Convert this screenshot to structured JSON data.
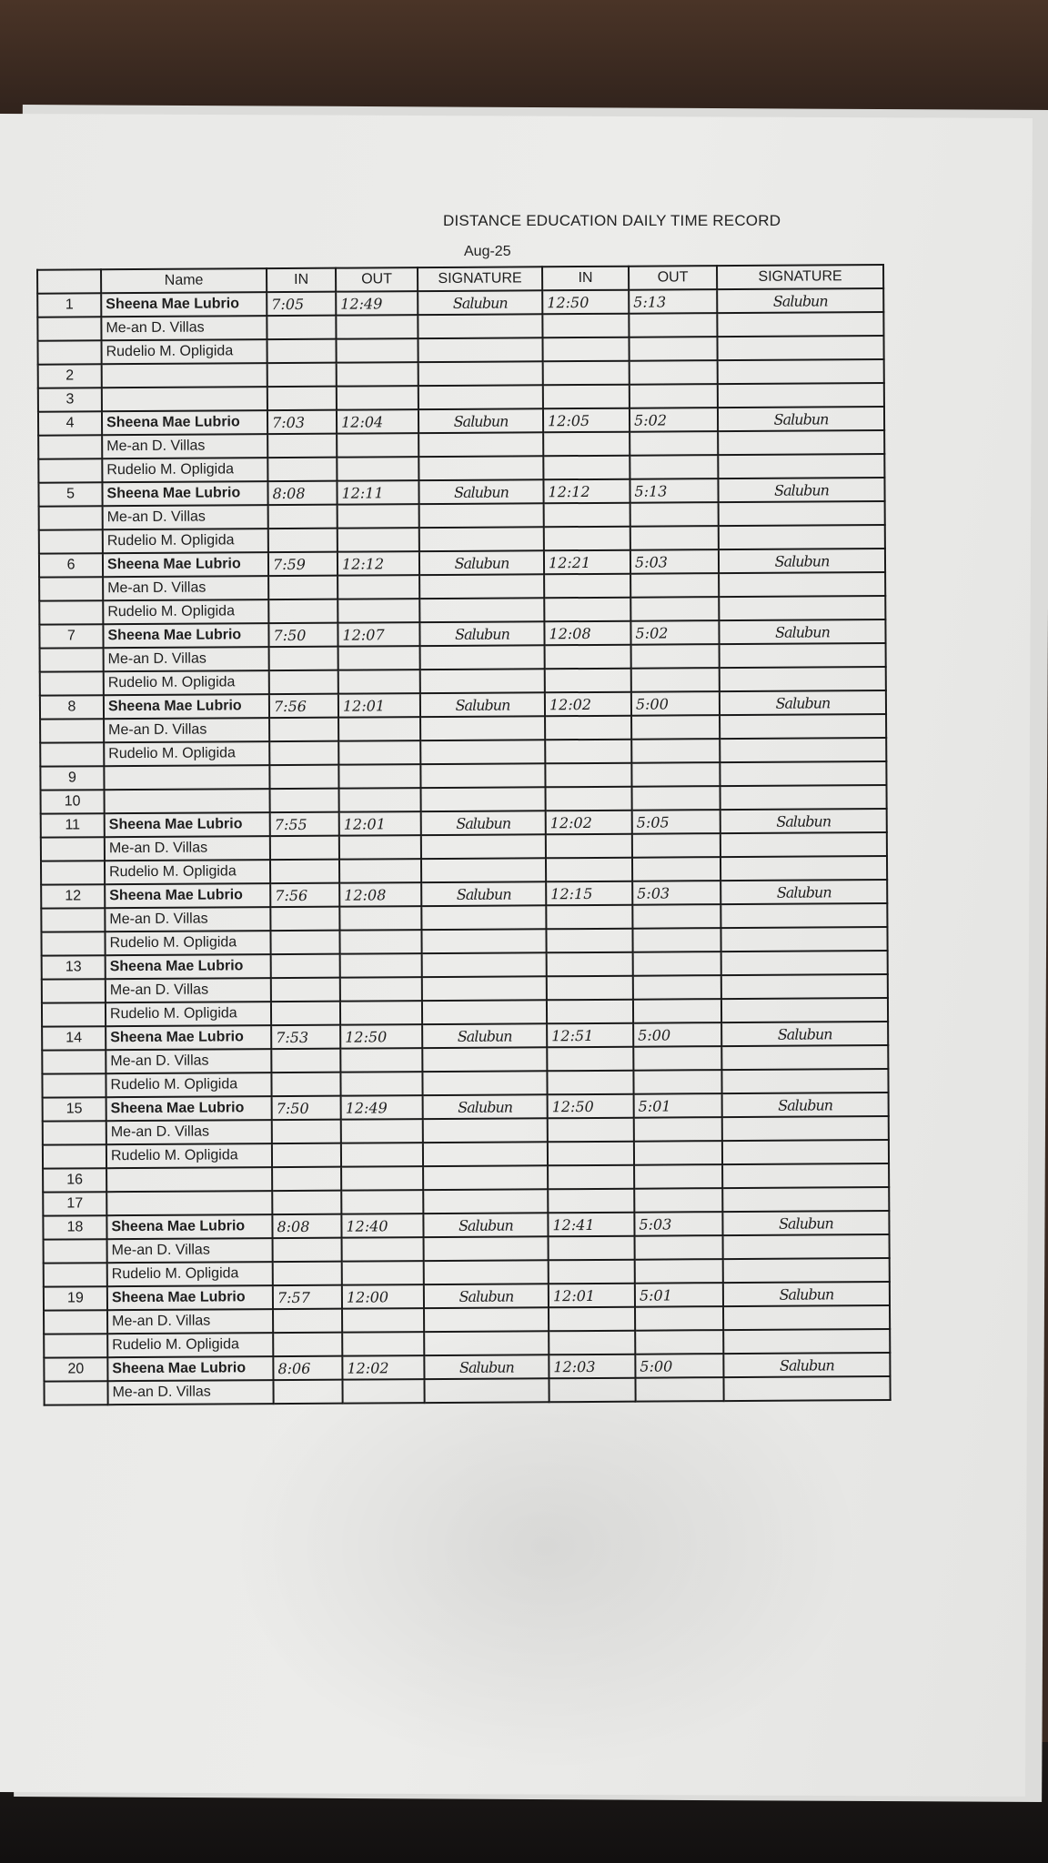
{
  "document": {
    "title": "DISTANCE EDUCATION DAILY TIME RECORD",
    "month": "Aug-25",
    "headers": [
      "",
      "Name",
      "IN",
      "OUT",
      "SIGNATURE",
      "IN",
      "OUT",
      "SIGNATURE"
    ],
    "ink_color": "#2b3a8f",
    "rows": [
      {
        "cells": [
          "1",
          "Sheena Mae Lubrio",
          "7:05",
          "12:49",
          "Salubun",
          "12:50",
          "5:13",
          "Salubun"
        ]
      },
      {
        "cells": [
          "",
          "Me-an D. Villas",
          "",
          "",
          "",
          "",
          "",
          ""
        ]
      },
      {
        "cells": [
          "",
          "Rudelio M. Opligida",
          "",
          "",
          "",
          "",
          "",
          ""
        ]
      },
      {
        "cells": [
          "2",
          "",
          "",
          "",
          "",
          "",
          "",
          ""
        ]
      },
      {
        "cells": [
          "3",
          "",
          "",
          "",
          "",
          "",
          "",
          ""
        ]
      },
      {
        "cells": [
          "4",
          "Sheena Mae Lubrio",
          "7:03",
          "12:04",
          "Salubun",
          "12:05",
          "5:02",
          "Salubun"
        ]
      },
      {
        "cells": [
          "",
          "Me-an D. Villas",
          "",
          "",
          "",
          "",
          "",
          ""
        ]
      },
      {
        "cells": [
          "",
          "Rudelio M. Opligida",
          "",
          "",
          "",
          "",
          "",
          ""
        ]
      },
      {
        "cells": [
          "5",
          "Sheena Mae Lubrio",
          "8:08",
          "12:11",
          "Salubun",
          "12:12",
          "5:13",
          "Salubun"
        ]
      },
      {
        "cells": [
          "",
          "Me-an D. Villas",
          "",
          "",
          "",
          "",
          "",
          ""
        ]
      },
      {
        "cells": [
          "",
          "Rudelio M. Opligida",
          "",
          "",
          "",
          "",
          "",
          ""
        ]
      },
      {
        "cells": [
          "6",
          "Sheena Mae Lubrio",
          "7:59",
          "12:12",
          "Salubun",
          "12:21",
          "5:03",
          "Salubun"
        ]
      },
      {
        "cells": [
          "",
          "Me-an D. Villas",
          "",
          "",
          "",
          "",
          "",
          ""
        ]
      },
      {
        "cells": [
          "",
          "Rudelio M. Opligida",
          "",
          "",
          "",
          "",
          "",
          ""
        ]
      },
      {
        "cells": [
          "7",
          "Sheena Mae Lubrio",
          "7:50",
          "12:07",
          "Salubun",
          "12:08",
          "5:02",
          "Salubun"
        ]
      },
      {
        "cells": [
          "",
          "Me-an D. Villas",
          "",
          "",
          "",
          "",
          "",
          ""
        ]
      },
      {
        "cells": [
          "",
          "Rudelio M. Opligida",
          "",
          "",
          "",
          "",
          "",
          ""
        ]
      },
      {
        "cells": [
          "8",
          "Sheena Mae Lubrio",
          "7:56",
          "12:01",
          "Salubun",
          "12:02",
          "5:00",
          "Salubun"
        ]
      },
      {
        "cells": [
          "",
          "Me-an D. Villas",
          "",
          "",
          "",
          "",
          "",
          ""
        ]
      },
      {
        "cells": [
          "",
          "Rudelio M. Opligida",
          "",
          "",
          "",
          "",
          "",
          ""
        ]
      },
      {
        "cells": [
          "9",
          "",
          "",
          "",
          "",
          "",
          "",
          ""
        ]
      },
      {
        "cells": [
          "10",
          "",
          "",
          "",
          "",
          "",
          "",
          ""
        ]
      },
      {
        "cells": [
          "11",
          "Sheena Mae Lubrio",
          "7:55",
          "12:01",
          "Salubun",
          "12:02",
          "5:05",
          "Salubun"
        ]
      },
      {
        "cells": [
          "",
          "Me-an D. Villas",
          "",
          "",
          "",
          "",
          "",
          ""
        ]
      },
      {
        "cells": [
          "",
          "Rudelio M. Opligida",
          "",
          "",
          "",
          "",
          "",
          ""
        ]
      },
      {
        "cells": [
          "12",
          "Sheena Mae Lubrio",
          "7:56",
          "12:08",
          "Salubun",
          "12:15",
          "5:03",
          "Salubun"
        ]
      },
      {
        "cells": [
          "",
          "Me-an D. Villas",
          "",
          "",
          "",
          "",
          "",
          ""
        ]
      },
      {
        "cells": [
          "",
          "Rudelio M. Opligida",
          "",
          "",
          "",
          "",
          "",
          ""
        ]
      },
      {
        "cells": [
          "13",
          "Sheena Mae Lubrio",
          "",
          "",
          "",
          "",
          "",
          ""
        ]
      },
      {
        "cells": [
          "",
          "Me-an D. Villas",
          "",
          "",
          "",
          "",
          "",
          ""
        ]
      },
      {
        "cells": [
          "",
          "Rudelio M. Opligida",
          "",
          "",
          "",
          "",
          "",
          ""
        ]
      },
      {
        "cells": [
          "14",
          "Sheena Mae Lubrio",
          "7:53",
          "12:50",
          "Salubun",
          "12:51",
          "5:00",
          "Salubun"
        ]
      },
      {
        "cells": [
          "",
          "Me-an D. Villas",
          "",
          "",
          "",
          "",
          "",
          ""
        ]
      },
      {
        "cells": [
          "",
          "Rudelio M. Opligida",
          "",
          "",
          "",
          "",
          "",
          ""
        ]
      },
      {
        "cells": [
          "15",
          "Sheena Mae Lubrio",
          "7:50",
          "12:49",
          "Salubun",
          "12:50",
          "5:01",
          "Salubun"
        ]
      },
      {
        "cells": [
          "",
          "Me-an D. Villas",
          "",
          "",
          "",
          "",
          "",
          ""
        ]
      },
      {
        "cells": [
          "",
          "Rudelio M. Opligida",
          "",
          "",
          "",
          "",
          "",
          ""
        ]
      },
      {
        "cells": [
          "16",
          "",
          "",
          "",
          "",
          "",
          "",
          ""
        ]
      },
      {
        "cells": [
          "17",
          "",
          "",
          "",
          "",
          "",
          "",
          ""
        ]
      },
      {
        "cells": [
          "18",
          "Sheena Mae Lubrio",
          "8:08",
          "12:40",
          "Salubun",
          "12:41",
          "5:03",
          "Salubun"
        ]
      },
      {
        "cells": [
          "",
          "Me-an D. Villas",
          "",
          "",
          "",
          "",
          "",
          ""
        ]
      },
      {
        "cells": [
          "",
          "Rudelio M. Opligida",
          "",
          "",
          "",
          "",
          "",
          ""
        ]
      },
      {
        "cells": [
          "19",
          "Sheena Mae Lubrio",
          "7:57",
          "12:00",
          "Salubun",
          "12:01",
          "5:01",
          "Salubun"
        ]
      },
      {
        "cells": [
          "",
          "Me-an D. Villas",
          "",
          "",
          "",
          "",
          "",
          ""
        ]
      },
      {
        "cells": [
          "",
          "Rudelio M. Opligida",
          "",
          "",
          "",
          "",
          "",
          ""
        ]
      },
      {
        "cells": [
          "20",
          "Sheena Mae Lubrio",
          "8:06",
          "12:02",
          "Salubun",
          "12:03",
          "5:00",
          "Salubun"
        ]
      },
      {
        "cells": [
          "",
          "Me-an D. Villas",
          "",
          "",
          "",
          "",
          "",
          ""
        ]
      }
    ]
  }
}
